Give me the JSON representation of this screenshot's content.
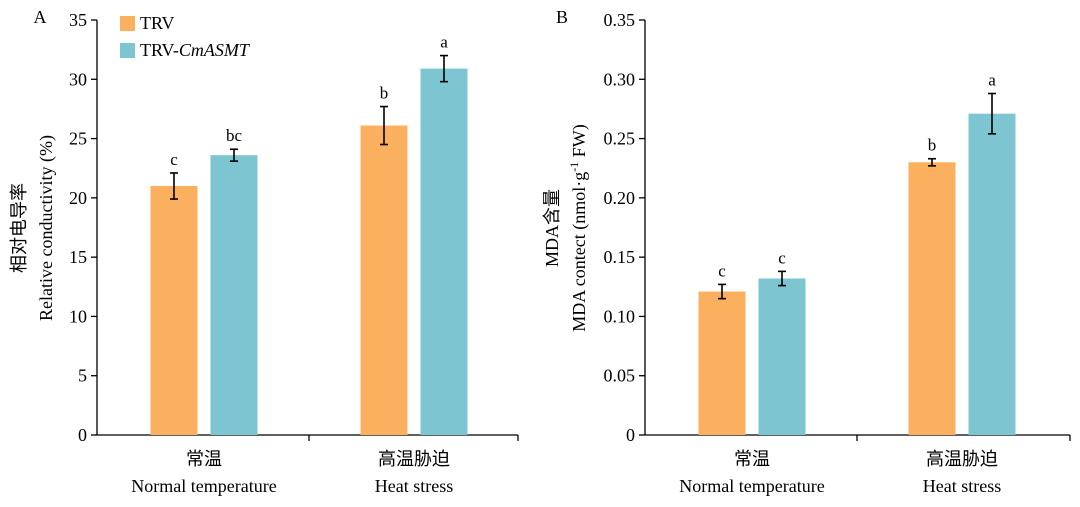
{
  "legend": {
    "series": [
      {
        "name": "TRV",
        "color": "#FBB05F"
      },
      {
        "name_plain": "TRV-",
        "name_italic": "CmASMT",
        "color": "#7DC6D1"
      }
    ]
  },
  "chart_data": [
    {
      "type": "bar",
      "panel": "A",
      "ylabel_cn": "相对电导率",
      "ylabel": "Relative conductivity (%)",
      "ylim": [
        0,
        35
      ],
      "yticks": [
        0,
        5,
        10,
        15,
        20,
        25,
        30,
        35
      ],
      "ytick_labels": [
        "0",
        "5",
        "10",
        "15",
        "20",
        "25",
        "30",
        "35"
      ],
      "categories": [
        {
          "cn": "常温",
          "en": "Normal temperature"
        },
        {
          "cn": "高温胁迫",
          "en": "Heat stress"
        }
      ],
      "series": [
        {
          "name": "TRV",
          "values": [
            21.0,
            26.1
          ],
          "errors": [
            1.1,
            1.6
          ],
          "letters": [
            "c",
            "b"
          ]
        },
        {
          "name": "TRV-CmASMT",
          "values": [
            23.6,
            30.9
          ],
          "errors": [
            0.5,
            1.1
          ],
          "letters": [
            "bc",
            "a"
          ]
        }
      ]
    },
    {
      "type": "bar",
      "panel": "B",
      "ylabel_cn": "MDA含量",
      "ylabel_prefix": "MDA contect (nmol·g",
      "ylabel_sup": "-1",
      "ylabel_suffix": " FW)",
      "ylim": [
        0,
        0.35
      ],
      "yticks": [
        0,
        0.05,
        0.1,
        0.15,
        0.2,
        0.25,
        0.3,
        0.35
      ],
      "ytick_labels": [
        "0",
        "0.05",
        "0.10",
        "0.15",
        "0.20",
        "0.25",
        "0.30",
        "0.35"
      ],
      "categories": [
        {
          "cn": "常温",
          "en": "Normal temperature"
        },
        {
          "cn": "高温胁迫",
          "en": "Heat stress"
        }
      ],
      "series": [
        {
          "name": "TRV",
          "values": [
            0.121,
            0.23
          ],
          "errors": [
            0.006,
            0.003
          ],
          "letters": [
            "c",
            "b"
          ]
        },
        {
          "name": "TRV-CmASMT",
          "values": [
            0.132,
            0.271
          ],
          "errors": [
            0.006,
            0.017
          ],
          "letters": [
            "c",
            "a"
          ]
        }
      ]
    }
  ]
}
